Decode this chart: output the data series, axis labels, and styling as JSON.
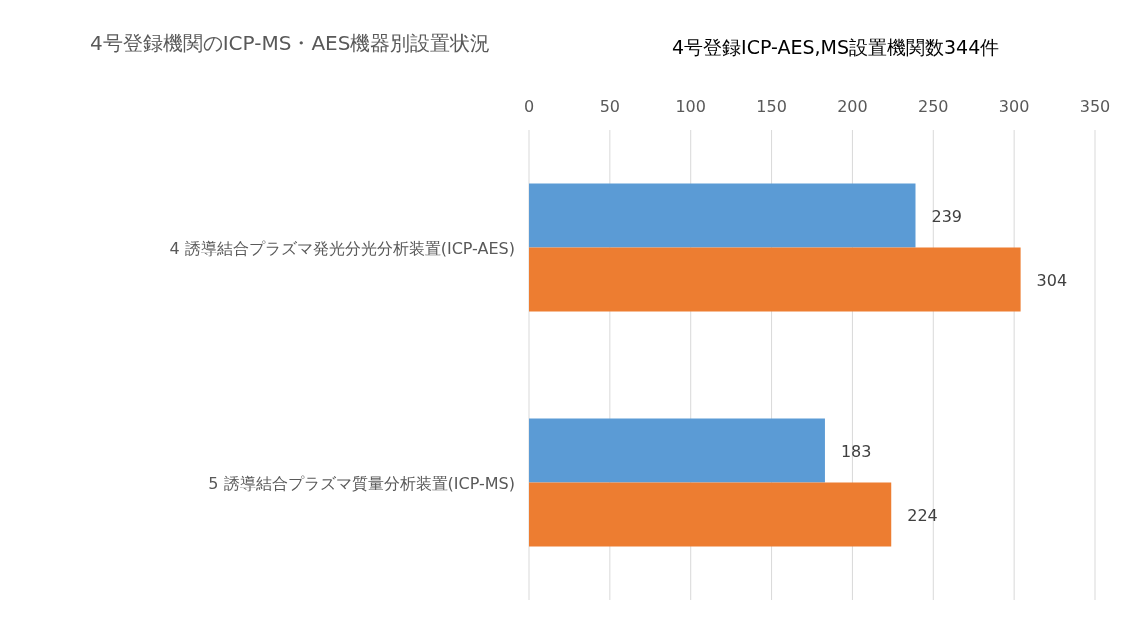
{
  "chart_data": {
    "type": "bar",
    "orientation": "horizontal",
    "title": "4号登録機関のICP-MS・AES機器別設置状況",
    "subtitle": "4号登録ICP-AES,MS設置機関数344件",
    "categories": [
      "4 誘導結合プラズマ発光分光分析装置(ICP-AES)",
      "5 誘導結合プラズマ質量分析装置(ICP-MS)"
    ],
    "series": [
      {
        "color": "#5b9bd5",
        "values": [
          239,
          183
        ]
      },
      {
        "color": "#ed7d31",
        "values": [
          304,
          224
        ]
      }
    ],
    "xlim": [
      0,
      350
    ],
    "xticks": [
      0,
      50,
      100,
      150,
      200,
      250,
      300,
      350
    ],
    "grid": "x",
    "data_labels": true
  }
}
